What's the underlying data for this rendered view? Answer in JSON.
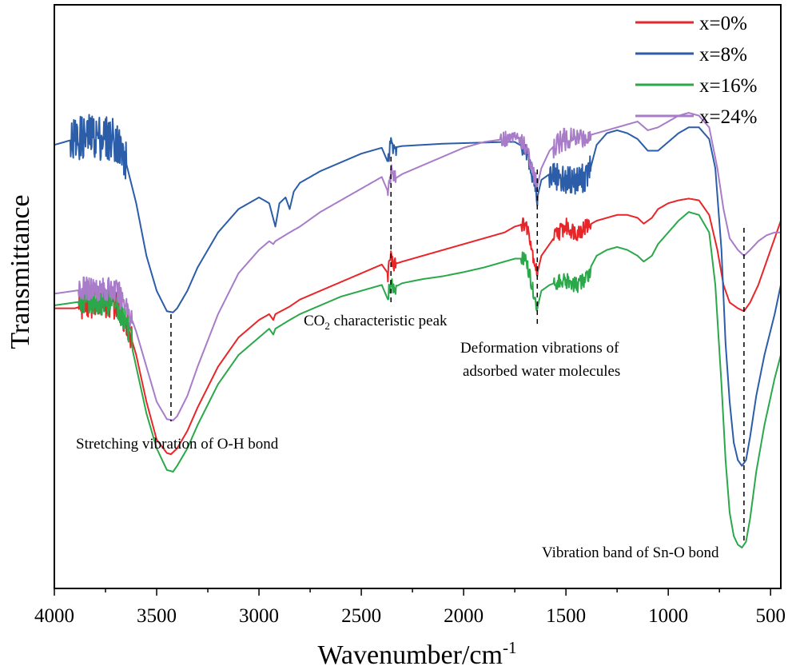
{
  "chart_data": {
    "type": "line",
    "title": "",
    "xlabel": "Wavenumber/cm",
    "xlabel_sup": "-1",
    "ylabel": "Transmittance",
    "xlim": [
      4000,
      450
    ],
    "ylim": [
      0,
      100
    ],
    "x_reversed": true,
    "xticks": [
      4000,
      3500,
      3000,
      2500,
      2000,
      1500,
      1000,
      500
    ],
    "grid": false,
    "legend_position": "top-right",
    "series": [
      {
        "name": "x=0%",
        "color": "#e8262a",
        "noise": [
          {
            "from": 3880,
            "to": 3620,
            "amp": 2.5
          },
          {
            "from": 1720,
            "to": 1640,
            "amp": 1.2
          },
          {
            "from": 1560,
            "to": 1380,
            "amp": 1.5
          },
          {
            "from": 2370,
            "to": 2330,
            "amp": 1.5
          }
        ],
        "points": [
          [
            4000,
            48
          ],
          [
            3900,
            48
          ],
          [
            3800,
            49
          ],
          [
            3700,
            48.5
          ],
          [
            3650,
            46
          ],
          [
            3600,
            40
          ],
          [
            3550,
            32
          ],
          [
            3500,
            25.5
          ],
          [
            3450,
            23.2
          ],
          [
            3430,
            23
          ],
          [
            3400,
            24
          ],
          [
            3350,
            27
          ],
          [
            3300,
            31
          ],
          [
            3200,
            38
          ],
          [
            3100,
            43
          ],
          [
            3000,
            46
          ],
          [
            2950,
            47
          ],
          [
            2930,
            46
          ],
          [
            2920,
            47
          ],
          [
            2850,
            48.3
          ],
          [
            2800,
            49.5
          ],
          [
            2700,
            51
          ],
          [
            2600,
            52.5
          ],
          [
            2500,
            54
          ],
          [
            2400,
            55.5
          ],
          [
            2370,
            54
          ],
          [
            2355,
            57
          ],
          [
            2345,
            55.5
          ],
          [
            2300,
            56
          ],
          [
            2200,
            57
          ],
          [
            2100,
            58
          ],
          [
            2000,
            59
          ],
          [
            1900,
            60
          ],
          [
            1800,
            61
          ],
          [
            1750,
            62
          ],
          [
            1700,
            62.5
          ],
          [
            1680,
            61
          ],
          [
            1660,
            57
          ],
          [
            1640,
            54
          ],
          [
            1620,
            57
          ],
          [
            1580,
            59
          ],
          [
            1540,
            61
          ],
          [
            1500,
            62
          ],
          [
            1450,
            61
          ],
          [
            1400,
            62
          ],
          [
            1350,
            63
          ],
          [
            1300,
            63.5
          ],
          [
            1250,
            64
          ],
          [
            1200,
            64
          ],
          [
            1150,
            63.5
          ],
          [
            1120,
            62.5
          ],
          [
            1080,
            63.5
          ],
          [
            1050,
            65
          ],
          [
            1000,
            66
          ],
          [
            950,
            66.5
          ],
          [
            900,
            66.8
          ],
          [
            850,
            66.5
          ],
          [
            800,
            64
          ],
          [
            760,
            58
          ],
          [
            730,
            52
          ],
          [
            700,
            49
          ],
          [
            660,
            48
          ],
          [
            630,
            47.5
          ],
          [
            600,
            49
          ],
          [
            560,
            52
          ],
          [
            520,
            56
          ],
          [
            480,
            60
          ],
          [
            450,
            63
          ]
        ]
      },
      {
        "name": "x=8%",
        "color": "#2b5da9",
        "noise": [
          {
            "from": 3920,
            "to": 3650,
            "amp": 4
          },
          {
            "from": 1720,
            "to": 1640,
            "amp": 1.5
          },
          {
            "from": 1580,
            "to": 1380,
            "amp": 2.5
          },
          {
            "from": 2370,
            "to": 2330,
            "amp": 1.5
          }
        ],
        "points": [
          [
            4000,
            76
          ],
          [
            3900,
            77
          ],
          [
            3800,
            77.5
          ],
          [
            3700,
            77
          ],
          [
            3650,
            73
          ],
          [
            3600,
            66
          ],
          [
            3550,
            57
          ],
          [
            3500,
            51
          ],
          [
            3450,
            47.5
          ],
          [
            3420,
            47.3
          ],
          [
            3400,
            48
          ],
          [
            3350,
            51
          ],
          [
            3300,
            55
          ],
          [
            3200,
            61
          ],
          [
            3100,
            65
          ],
          [
            3000,
            67
          ],
          [
            2950,
            66
          ],
          [
            2920,
            62
          ],
          [
            2900,
            66
          ],
          [
            2870,
            67
          ],
          [
            2850,
            65
          ],
          [
            2830,
            68
          ],
          [
            2800,
            69.5
          ],
          [
            2700,
            71.5
          ],
          [
            2600,
            73
          ],
          [
            2500,
            74.5
          ],
          [
            2400,
            75.5
          ],
          [
            2370,
            73
          ],
          [
            2355,
            77
          ],
          [
            2345,
            75.5
          ],
          [
            2300,
            75.8
          ],
          [
            2200,
            76
          ],
          [
            2100,
            76.2
          ],
          [
            2000,
            76.3
          ],
          [
            1900,
            76.4
          ],
          [
            1800,
            76.5
          ],
          [
            1750,
            76.5
          ],
          [
            1700,
            75.5
          ],
          [
            1680,
            73
          ],
          [
            1660,
            70
          ],
          [
            1640,
            67
          ],
          [
            1620,
            70
          ],
          [
            1580,
            71
          ],
          [
            1540,
            70.5
          ],
          [
            1500,
            70
          ],
          [
            1450,
            70
          ],
          [
            1400,
            70.5
          ],
          [
            1380,
            72
          ],
          [
            1350,
            76
          ],
          [
            1300,
            78
          ],
          [
            1250,
            78.5
          ],
          [
            1200,
            78
          ],
          [
            1150,
            77
          ],
          [
            1100,
            75
          ],
          [
            1050,
            75
          ],
          [
            1000,
            76.5
          ],
          [
            950,
            78
          ],
          [
            900,
            79
          ],
          [
            850,
            79
          ],
          [
            800,
            77
          ],
          [
            770,
            72
          ],
          [
            740,
            58
          ],
          [
            720,
            42
          ],
          [
            700,
            32
          ],
          [
            680,
            25
          ],
          [
            660,
            22
          ],
          [
            640,
            21
          ],
          [
            620,
            22
          ],
          [
            600,
            26
          ],
          [
            570,
            33
          ],
          [
            530,
            40
          ],
          [
            480,
            47
          ],
          [
            450,
            52
          ]
        ]
      },
      {
        "name": "x=16%",
        "color": "#2aa84a",
        "noise": [
          {
            "from": 3880,
            "to": 3620,
            "amp": 2.5
          },
          {
            "from": 1720,
            "to": 1640,
            "amp": 1.2
          },
          {
            "from": 1560,
            "to": 1380,
            "amp": 1.5
          },
          {
            "from": 2370,
            "to": 2330,
            "amp": 1.5
          }
        ],
        "points": [
          [
            4000,
            48.5
          ],
          [
            3900,
            49
          ],
          [
            3800,
            49.5
          ],
          [
            3700,
            49
          ],
          [
            3650,
            46
          ],
          [
            3600,
            38
          ],
          [
            3550,
            30
          ],
          [
            3500,
            24
          ],
          [
            3450,
            20.3
          ],
          [
            3420,
            20
          ],
          [
            3400,
            21
          ],
          [
            3350,
            24
          ],
          [
            3300,
            28
          ],
          [
            3200,
            35
          ],
          [
            3100,
            40
          ],
          [
            3000,
            43
          ],
          [
            2950,
            44.5
          ],
          [
            2930,
            43.5
          ],
          [
            2920,
            44.5
          ],
          [
            2850,
            46
          ],
          [
            2800,
            47
          ],
          [
            2700,
            48.5
          ],
          [
            2600,
            50
          ],
          [
            2500,
            51
          ],
          [
            2400,
            52
          ],
          [
            2370,
            49.5
          ],
          [
            2355,
            53
          ],
          [
            2345,
            51.5
          ],
          [
            2300,
            52.3
          ],
          [
            2200,
            53
          ],
          [
            2100,
            53.5
          ],
          [
            2000,
            54.2
          ],
          [
            1900,
            55
          ],
          [
            1800,
            56
          ],
          [
            1750,
            56.5
          ],
          [
            1700,
            56.5
          ],
          [
            1680,
            54
          ],
          [
            1660,
            51
          ],
          [
            1640,
            48
          ],
          [
            1620,
            51
          ],
          [
            1580,
            52
          ],
          [
            1540,
            52.5
          ],
          [
            1500,
            52.5
          ],
          [
            1450,
            52
          ],
          [
            1400,
            53
          ],
          [
            1380,
            55
          ],
          [
            1350,
            57
          ],
          [
            1300,
            58
          ],
          [
            1250,
            58.5
          ],
          [
            1200,
            58
          ],
          [
            1150,
            57
          ],
          [
            1120,
            56
          ],
          [
            1080,
            57
          ],
          [
            1050,
            59
          ],
          [
            1000,
            61
          ],
          [
            950,
            63
          ],
          [
            900,
            64.5
          ],
          [
            850,
            64
          ],
          [
            800,
            61
          ],
          [
            770,
            52
          ],
          [
            740,
            35
          ],
          [
            720,
            22
          ],
          [
            700,
            13
          ],
          [
            680,
            9
          ],
          [
            660,
            7.5
          ],
          [
            640,
            7
          ],
          [
            620,
            8
          ],
          [
            600,
            12
          ],
          [
            570,
            20
          ],
          [
            530,
            28
          ],
          [
            480,
            36
          ],
          [
            450,
            40
          ]
        ]
      },
      {
        "name": "x=24%",
        "color": "#a87cc8",
        "noise": [
          {
            "from": 3880,
            "to": 3620,
            "amp": 2.2
          },
          {
            "from": 1820,
            "to": 1640,
            "amp": 1.5
          },
          {
            "from": 1560,
            "to": 1380,
            "amp": 2
          },
          {
            "from": 2370,
            "to": 2330,
            "amp": 1.5
          }
        ],
        "points": [
          [
            4000,
            50.5
          ],
          [
            3900,
            51
          ],
          [
            3800,
            51.5
          ],
          [
            3700,
            51
          ],
          [
            3650,
            49
          ],
          [
            3600,
            44
          ],
          [
            3550,
            38
          ],
          [
            3500,
            32
          ],
          [
            3450,
            29
          ],
          [
            3420,
            28.8
          ],
          [
            3400,
            29.5
          ],
          [
            3350,
            33
          ],
          [
            3300,
            38
          ],
          [
            3200,
            47
          ],
          [
            3100,
            54
          ],
          [
            3000,
            58
          ],
          [
            2950,
            59.5
          ],
          [
            2930,
            59
          ],
          [
            2920,
            59.5
          ],
          [
            2850,
            61
          ],
          [
            2800,
            62
          ],
          [
            2700,
            64.5
          ],
          [
            2600,
            66.5
          ],
          [
            2500,
            68.5
          ],
          [
            2400,
            70.5
          ],
          [
            2370,
            68
          ],
          [
            2355,
            71.5
          ],
          [
            2345,
            70
          ],
          [
            2300,
            71
          ],
          [
            2200,
            72.5
          ],
          [
            2100,
            74
          ],
          [
            2000,
            75.5
          ],
          [
            1900,
            76.5
          ],
          [
            1800,
            77
          ],
          [
            1750,
            77.5
          ],
          [
            1700,
            76
          ],
          [
            1680,
            74
          ],
          [
            1660,
            71
          ],
          [
            1640,
            69
          ],
          [
            1620,
            72
          ],
          [
            1580,
            75
          ],
          [
            1540,
            76.5
          ],
          [
            1500,
            77
          ],
          [
            1450,
            77
          ],
          [
            1400,
            77.5
          ],
          [
            1350,
            78
          ],
          [
            1300,
            78.5
          ],
          [
            1250,
            79
          ],
          [
            1200,
            79.5
          ],
          [
            1150,
            80
          ],
          [
            1100,
            78.5
          ],
          [
            1050,
            79
          ],
          [
            1000,
            80
          ],
          [
            950,
            81
          ],
          [
            900,
            81.5
          ],
          [
            850,
            81
          ],
          [
            800,
            79
          ],
          [
            760,
            72
          ],
          [
            730,
            65
          ],
          [
            700,
            60
          ],
          [
            660,
            58
          ],
          [
            630,
            57
          ],
          [
            600,
            58
          ],
          [
            560,
            59.5
          ],
          [
            520,
            60.5
          ],
          [
            480,
            61
          ],
          [
            450,
            61
          ]
        ]
      }
    ],
    "annotations": [
      {
        "text": "Stretching vibration of O-H bond",
        "x": 3430
      },
      {
        "text_main": "CO",
        "text_sub": "2",
        "text_rest": " characteristic peak",
        "x": 2355
      },
      {
        "line1": "Deformation vibrations of",
        "line2": "adsorbed water molecules",
        "x": 1640
      },
      {
        "text": "Vibration band of Sn-O bond",
        "x": 630
      }
    ]
  }
}
